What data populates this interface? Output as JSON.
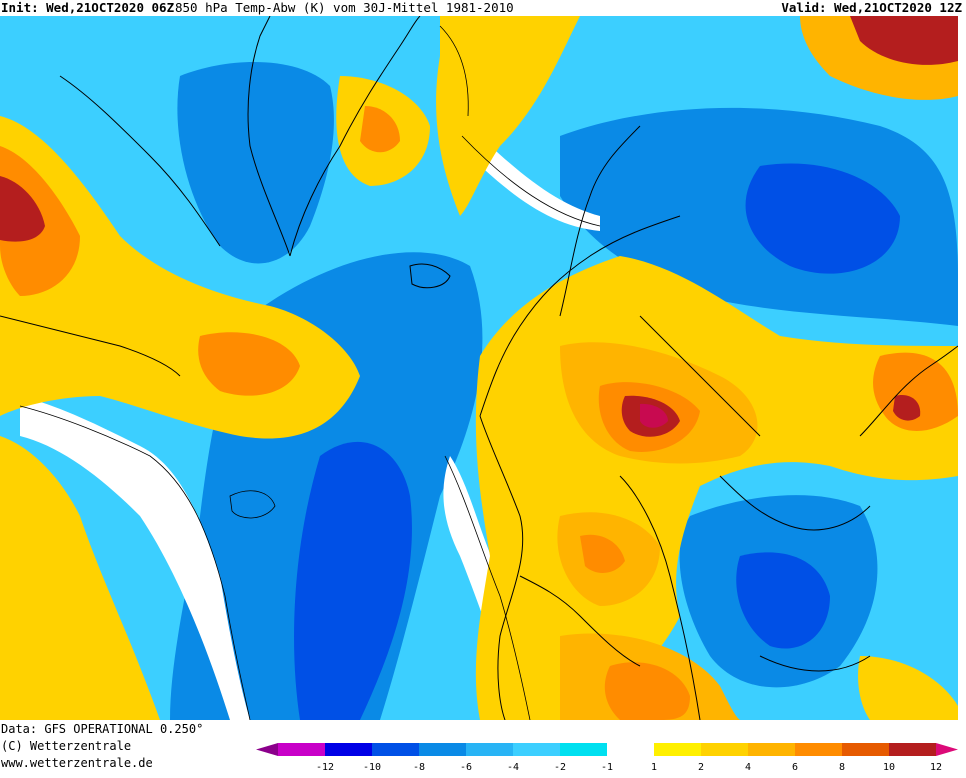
{
  "header": {
    "init": "Init: Wed,21OCT2020 06Z",
    "title": "850 hPa Temp-Abw (K) vom 30J-Mittel 1981-2010",
    "valid": "Valid: Wed,21OCT2020 12Z"
  },
  "footer": {
    "data_source": "Data: GFS OPERATIONAL 0.250°",
    "copyright": "(C) Wetterzentrale",
    "website": "www.wetterzentrale.de"
  },
  "legend": {
    "ticks": [
      "-12",
      "-10",
      "-8",
      "-6",
      "-4",
      "-2",
      "-1",
      "1",
      "2",
      "4",
      "6",
      "8",
      "10",
      "12"
    ],
    "colors": [
      "#8b008b",
      "#c800c8",
      "#0000e6",
      "#0050e6",
      "#0a8ae6",
      "#28b4f5",
      "#3ccfff",
      "#00e0f0",
      "#ffffff",
      "#fff000",
      "#ffd200",
      "#ffb400",
      "#ff8c00",
      "#e65a00",
      "#b41e1e",
      "#dc0a78"
    ]
  },
  "map": {
    "colors": {
      "cold_1": "#3ccfff",
      "cold_2": "#0a9ef0",
      "cold_3": "#0a8ae6",
      "cold_4": "#0050e6",
      "neutral": "#ffffff",
      "warm_1": "#fff000",
      "warm_2": "#ffd200",
      "warm_3": "#ffb400",
      "warm_4": "#ff8c00",
      "warm_5": "#e65a00",
      "warm_6": "#b41e1e",
      "hot": "#c80a50",
      "coastline": "#000000"
    }
  }
}
